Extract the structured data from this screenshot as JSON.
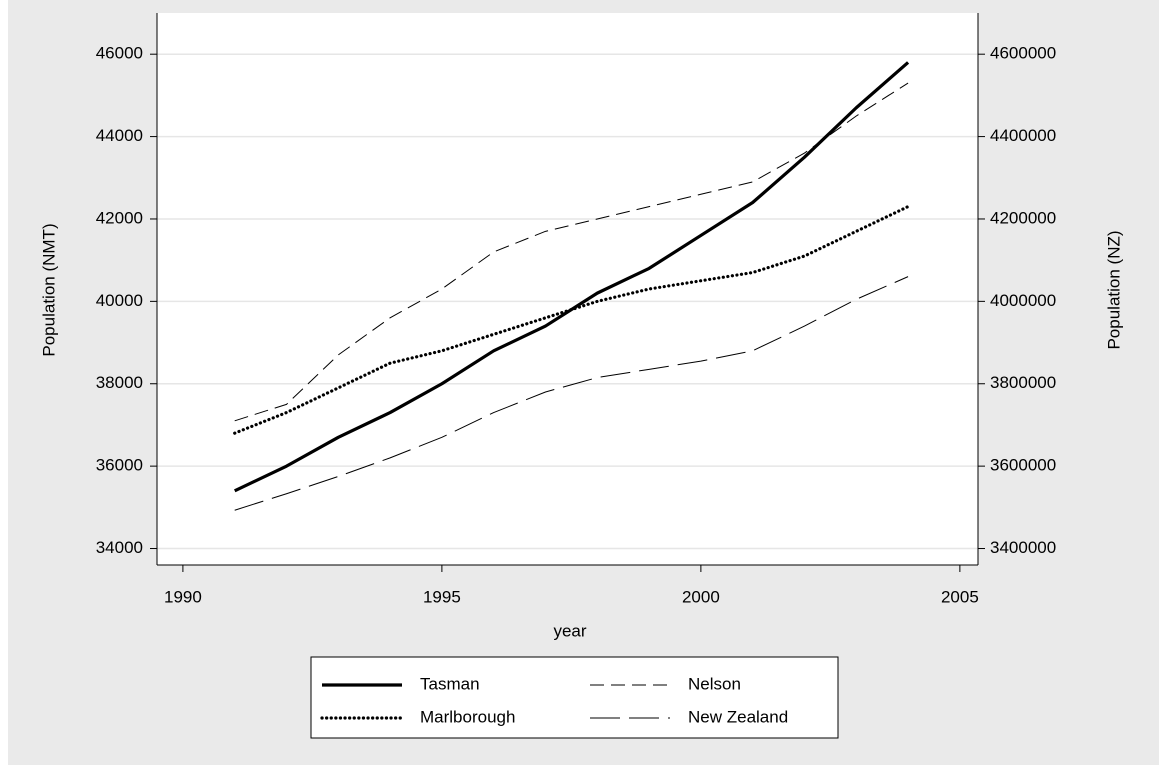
{
  "chart_data": {
    "type": "line",
    "x_label": "year",
    "y_label": "Population (NMT)",
    "y2_label": "Population (NZ)",
    "x": [
      1991,
      1992,
      1993,
      1994,
      1995,
      1996,
      1997,
      1998,
      1999,
      2000,
      2001,
      2002,
      2003,
      2004
    ],
    "series": [
      {
        "name": "Tasman",
        "color": "#000000",
        "style": "solid",
        "values": [
          35400,
          36000,
          36700,
          37300,
          38000,
          38800,
          39400,
          40200,
          40800,
          41600,
          42400,
          43500,
          44700,
          45800
        ]
      },
      {
        "name": "Nelson",
        "color": "#000000",
        "style": "dash",
        "values": [
          37100,
          37500,
          38700,
          39600,
          40300,
          41200,
          41700,
          42000,
          42300,
          42600,
          42900,
          43600,
          44500,
          45300
        ]
      },
      {
        "name": "Marlborough",
        "color": "#000000",
        "style": "dot",
        "values": [
          36800,
          37300,
          37900,
          38500,
          38800,
          39200,
          39600,
          40000,
          40300,
          40500,
          40700,
          41100,
          41700,
          42300
        ]
      },
      {
        "name": "New Zealand",
        "color": "#000000",
        "style": "longdash",
        "axis": "y2",
        "values": [
          3493000,
          3533000,
          3575000,
          3620000,
          3670000,
          3730000,
          3780000,
          3815000,
          3835000,
          3855000,
          3880000,
          3940000,
          4005000,
          4060000
        ]
      }
    ],
    "xlim": [
      1989.5,
      2005.35
    ],
    "xticks": [
      1990,
      1995,
      2000,
      2005
    ],
    "ylim": [
      33600,
      47000
    ],
    "yticks": [
      34000,
      36000,
      38000,
      40000,
      42000,
      44000,
      46000
    ],
    "y2lim": [
      3360000,
      4700000
    ],
    "y2ticks": [
      3400000,
      3600000,
      3800000,
      4000000,
      4200000,
      4400000,
      4600000
    ],
    "grid": true,
    "legend": "bottom"
  }
}
